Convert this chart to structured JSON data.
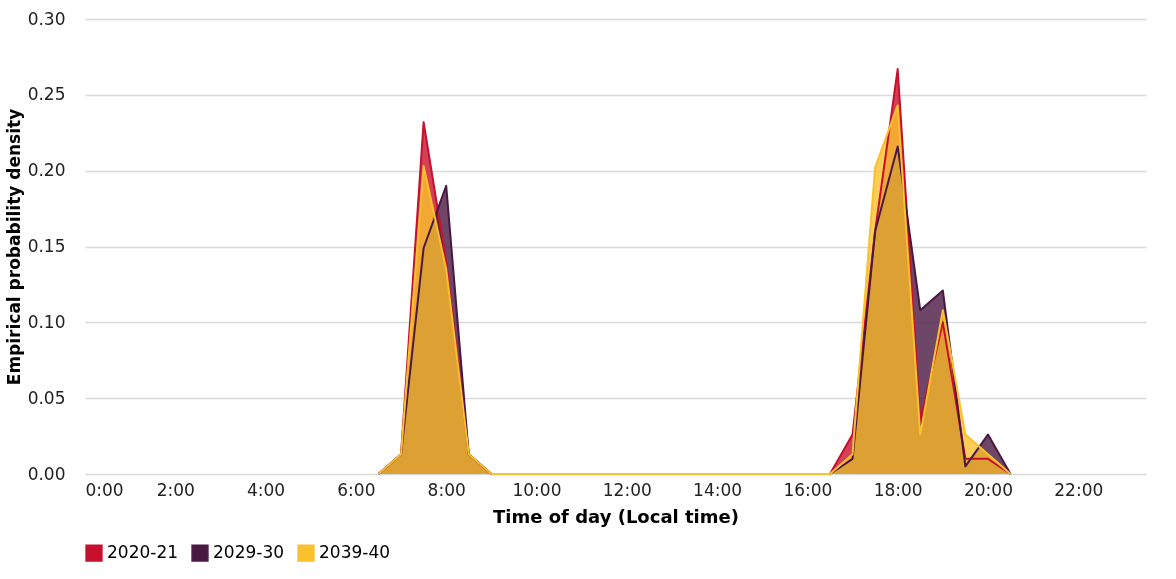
{
  "chart_data": {
    "type": "area",
    "xlabel": "Time of day (Local time)",
    "ylabel": "Empirical probability density",
    "x": [
      6.5,
      7,
      7.5,
      8,
      8.5,
      9,
      16.5,
      17,
      17.5,
      18,
      18.5,
      19,
      19.5,
      20,
      20.5
    ],
    "series": [
      {
        "name": "2020-21",
        "color": "#c8102e",
        "values": [
          0,
          0.013,
          0.232,
          0.14,
          0.013,
          0,
          0,
          0.026,
          0.16,
          0.267,
          0.035,
          0.1,
          0.01,
          0.01,
          0
        ]
      },
      {
        "name": "2029-30",
        "color": "#4a1942",
        "values": [
          0,
          0.013,
          0.149,
          0.19,
          0.013,
          0,
          0,
          0.01,
          0.16,
          0.216,
          0.108,
          0.121,
          0.005,
          0.026,
          0
        ]
      },
      {
        "name": "2039-40",
        "color": "#fbc02d",
        "values": [
          0,
          0.013,
          0.203,
          0.135,
          0.013,
          0,
          0,
          0.013,
          0.202,
          0.243,
          0.026,
          0.108,
          0.026,
          0.013,
          0
        ]
      }
    ],
    "xlim": [
      0,
      23.5
    ],
    "xticks": [
      {
        "value": 0,
        "label": "0:00"
      },
      {
        "value": 2,
        "label": "2:00"
      },
      {
        "value": 4,
        "label": "4:00"
      },
      {
        "value": 6,
        "label": "6:00"
      },
      {
        "value": 8,
        "label": "8:00"
      },
      {
        "value": 10,
        "label": "10:00"
      },
      {
        "value": 12,
        "label": "12:00"
      },
      {
        "value": 14,
        "label": "14:00"
      },
      {
        "value": 16,
        "label": "16:00"
      },
      {
        "value": 18,
        "label": "18:00"
      },
      {
        "value": 20,
        "label": "20:00"
      },
      {
        "value": 22,
        "label": "22:00"
      }
    ],
    "ylim": [
      0,
      0.3
    ],
    "yticks": [
      {
        "value": 0,
        "label": "0.00"
      },
      {
        "value": 0.05,
        "label": "0.05"
      },
      {
        "value": 0.1,
        "label": "0.10"
      },
      {
        "value": 0.15,
        "label": "0.15"
      },
      {
        "value": 0.2,
        "label": "0.20"
      },
      {
        "value": 0.25,
        "label": "0.25"
      },
      {
        "value": 0.3,
        "label": "0.30"
      }
    ],
    "grid": "y",
    "legend": "bottom"
  }
}
